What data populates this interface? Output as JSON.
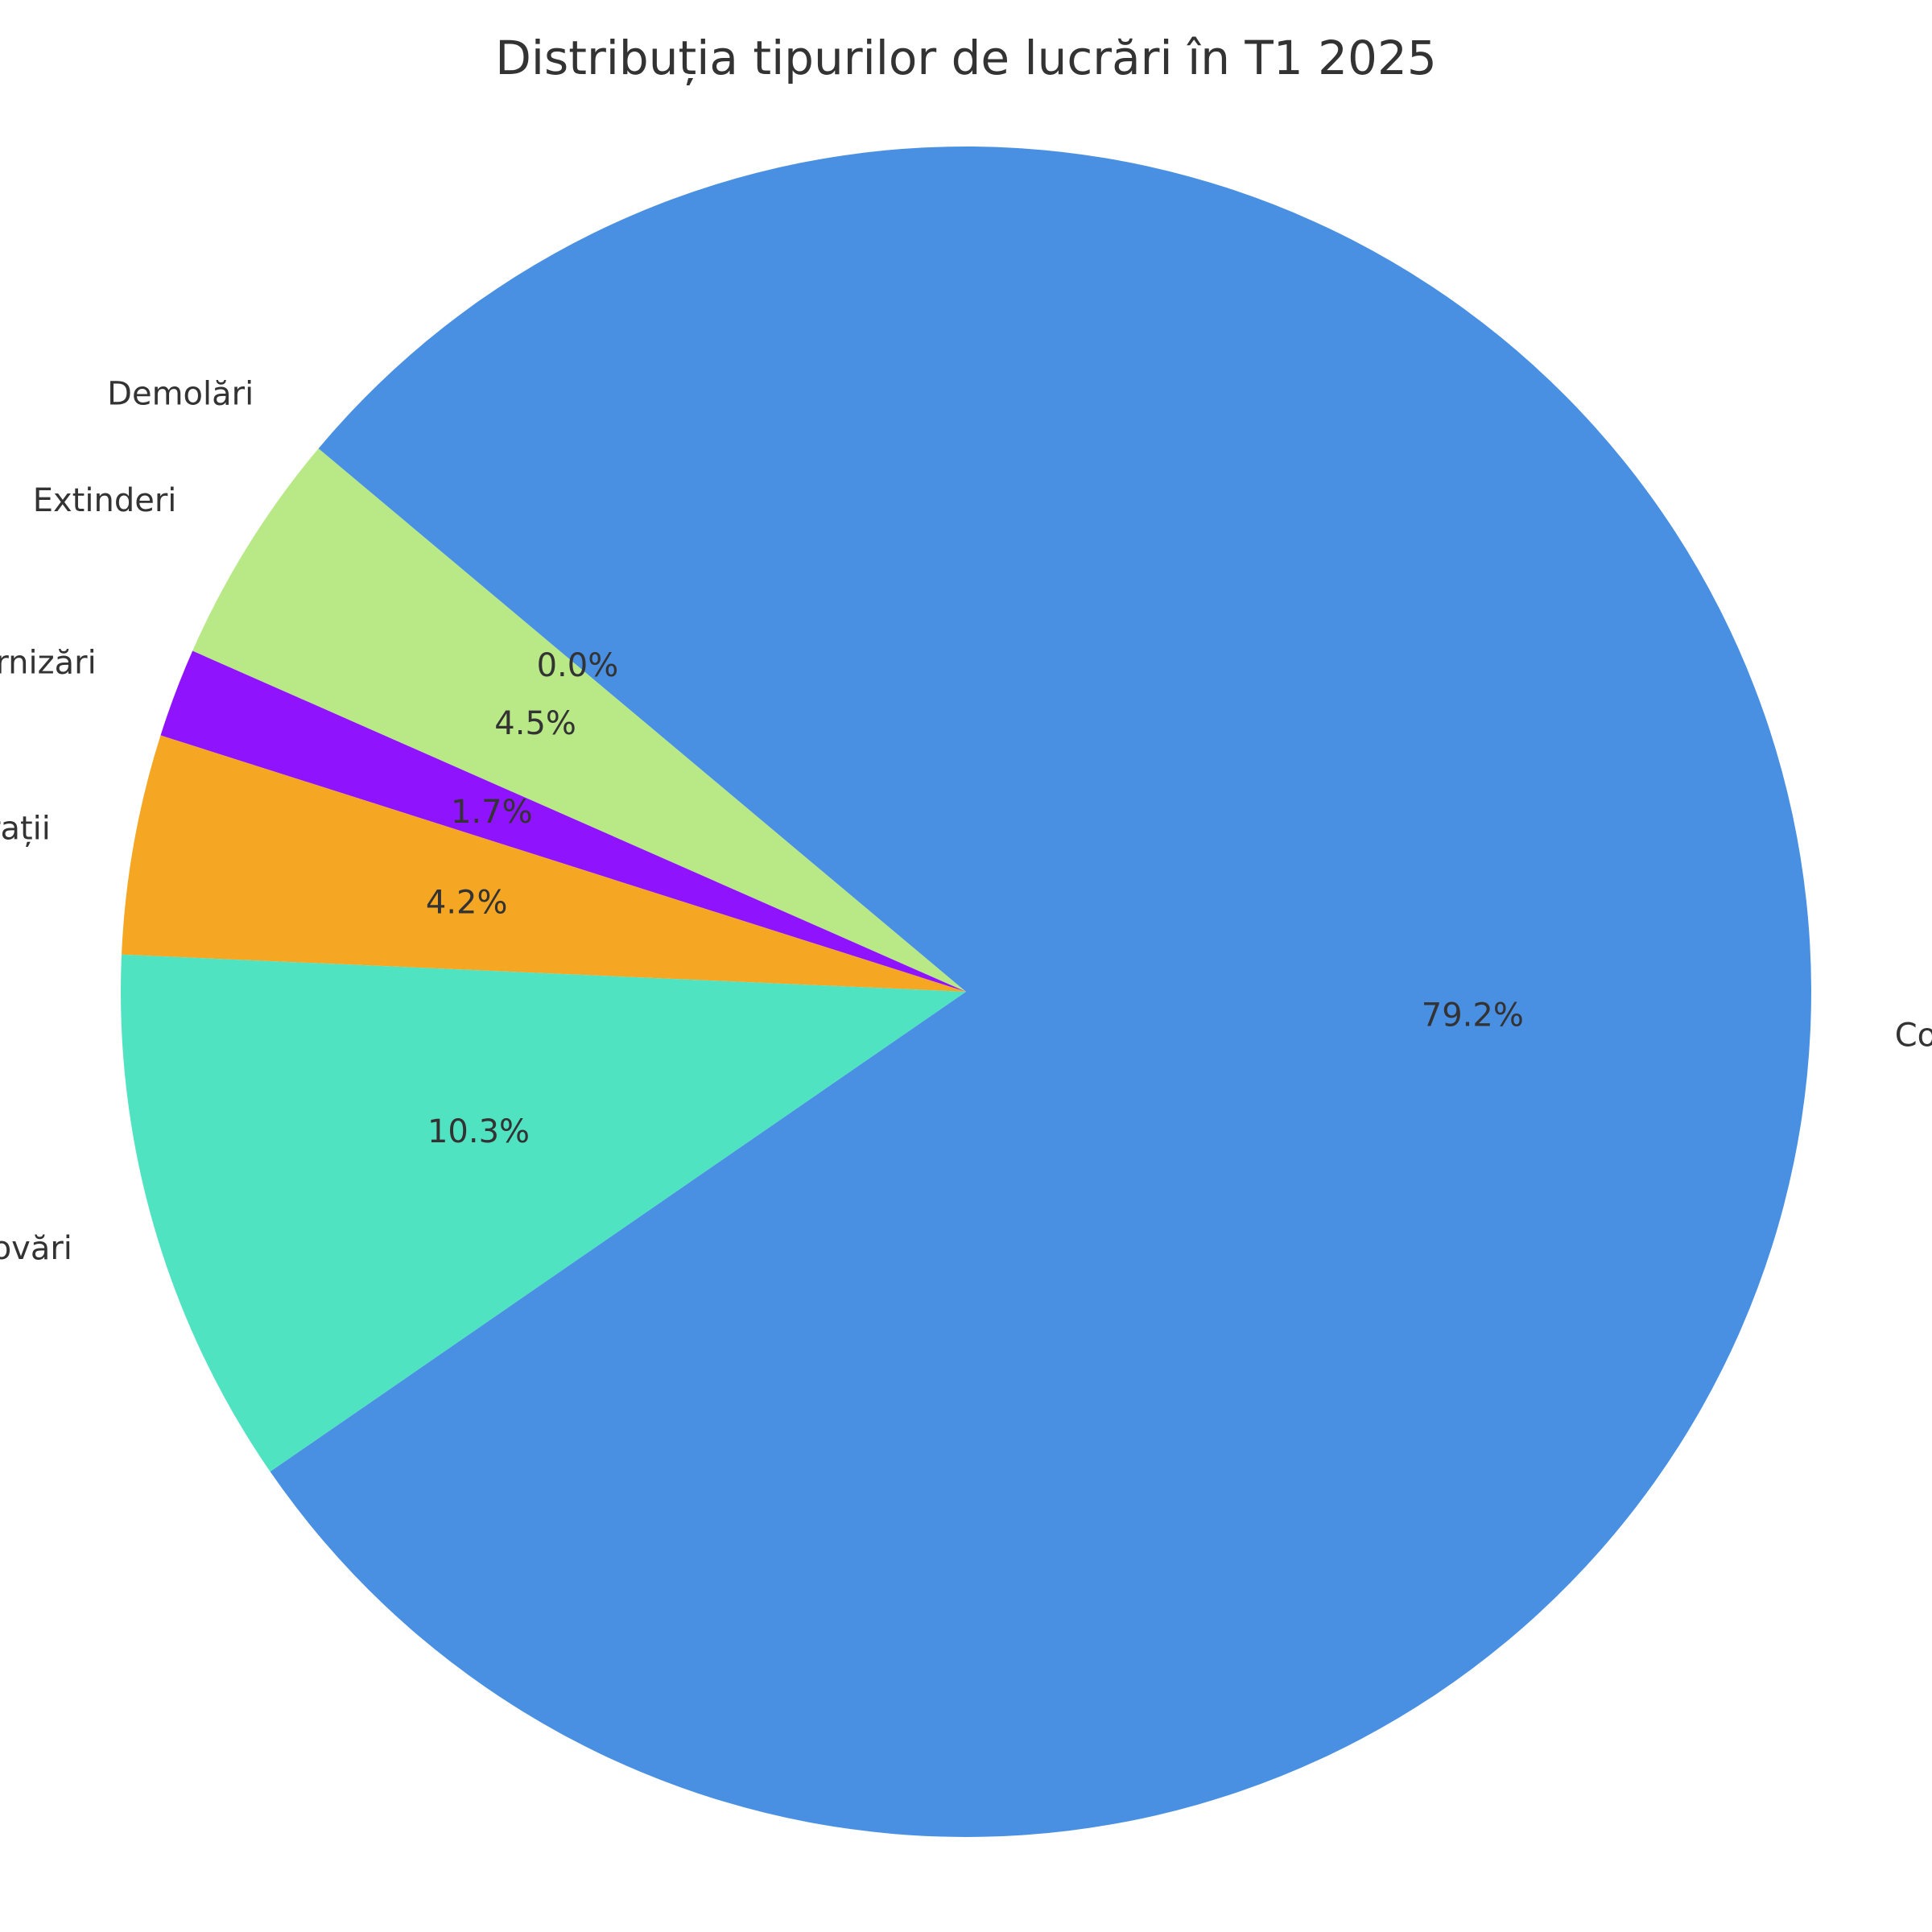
{
  "chart_data": {
    "type": "pie",
    "title": "Distribuția tipurilor de lucrări în T1 2025",
    "start_angle_deg": 140,
    "direction": "counterclockwise",
    "legend": "none",
    "slices": [
      {
        "label": "Demolări",
        "value": 0.0,
        "pct_label": "0.0%",
        "color": "#4A90E2"
      },
      {
        "label": "Extinderi",
        "value": 4.5,
        "pct_label": "4.5%",
        "color": "#B8E986"
      },
      {
        "label": "Modernizări",
        "value": 1.7,
        "pct_label": "1.7%",
        "color": "#9013FE"
      },
      {
        "label": "Reparații",
        "value": 4.2,
        "pct_label": "4.2%",
        "color": "#F5A623"
      },
      {
        "label": "Renovări",
        "value": 10.3,
        "pct_label": "10.3%",
        "color": "#50E3C2"
      },
      {
        "label": "Construcții noi",
        "value": 79.2,
        "pct_label": "79.2%",
        "color": "#4A90E2"
      }
    ]
  }
}
